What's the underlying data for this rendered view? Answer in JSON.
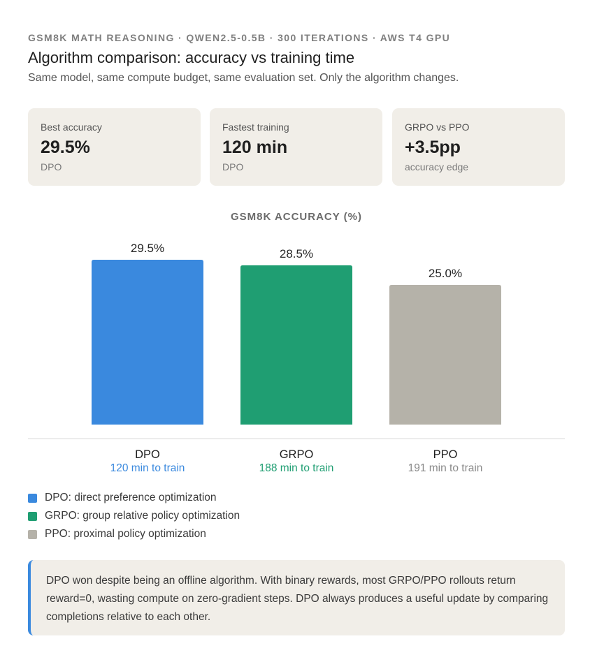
{
  "header": {
    "eyebrow": "GSM8K MATH REASONING · QWEN2.5-0.5B · 300 ITERATIONS · AWS T4 GPU",
    "title": "Algorithm comparison: accuracy vs training time",
    "subtitle": "Same model, same compute budget, same evaluation set. Only the algorithm changes."
  },
  "cards": [
    {
      "label": "Best accuracy",
      "value": "29.5%",
      "sub": "DPO"
    },
    {
      "label": "Fastest training",
      "value": "120 min",
      "sub": "DPO"
    },
    {
      "label": "GRPO vs PPO",
      "value": "+3.5pp",
      "sub": "accuracy edge"
    }
  ],
  "chart_data": {
    "type": "bar",
    "title": "GSM8K ACCURACY (%)",
    "categories": [
      "DPO",
      "GRPO",
      "PPO"
    ],
    "values": [
      29.5,
      28.5,
      25.0
    ],
    "value_labels": [
      "29.5%",
      "28.5%",
      "25.0%"
    ],
    "training_time_labels": [
      "120 min to train",
      "188 min to train",
      "191 min to train"
    ],
    "colors": [
      "#3a89de",
      "#1f9e72",
      "#b5b2a9"
    ],
    "label_colors": [
      "#3a89de",
      "#1f9e72",
      "#8a8a8a"
    ],
    "ylim": [
      0,
      29.5
    ],
    "grid": false
  },
  "legend": [
    {
      "text": "DPO: direct preference optimization",
      "color": "#3a89de"
    },
    {
      "text": "GRPO: group relative policy optimization",
      "color": "#1f9e72"
    },
    {
      "text": "PPO: proximal policy optimization",
      "color": "#b5b2a9"
    }
  ],
  "note": {
    "text": "DPO won despite being an offline algorithm. With binary rewards, most GRPO/PPO rollouts return reward=0, wasting compute on zero-gradient steps. DPO always produces a useful update by comparing completions relative to each other."
  }
}
